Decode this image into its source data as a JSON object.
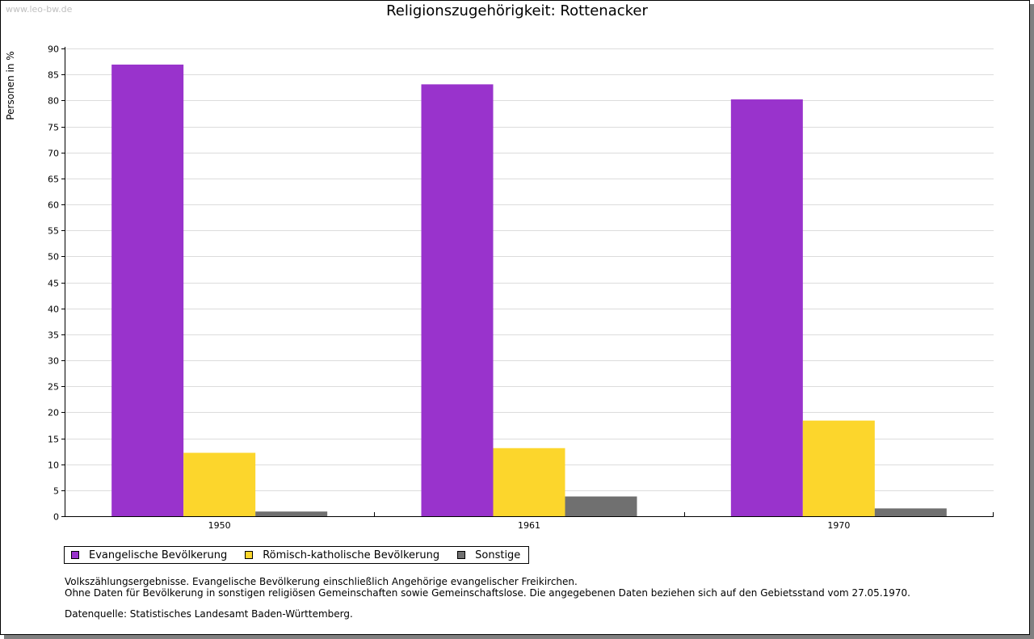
{
  "watermark": "www.leo-bw.de",
  "chart_data": {
    "type": "bar",
    "title": "Religionszugehörigkeit: Rottenacker",
    "ylabel": "Personen in %",
    "xlabel": "",
    "ylim": [
      0,
      90
    ],
    "ytick_step": 5,
    "grid": true,
    "categories": [
      "1950",
      "1961",
      "1970"
    ],
    "series": [
      {
        "name": "Evangelische Bevölkerung",
        "color": "#9933cc",
        "values": [
          86.9,
          83.1,
          80.2
        ]
      },
      {
        "name": "Römisch-katholische Bevölkerung",
        "color": "#fcd62c",
        "values": [
          12.2,
          13.1,
          18.4
        ]
      },
      {
        "name": "Sonstige",
        "color": "#707070",
        "values": [
          0.9,
          3.8,
          1.5
        ]
      }
    ],
    "legend_position": "bottom-left"
  },
  "notes": {
    "line1": "Volkszählungsergebnisse. Evangelische Bevölkerung einschließlich Angehörige evangelischer Freikirchen.",
    "line2": "Ohne Daten für Bevölkerung in sonstigen religiösen Gemeinschaften sowie Gemeinschaftslose. Die angegebenen Daten beziehen sich auf den Gebietsstand vom 27.05.1970.",
    "source": "Datenquelle: Statistisches Landesamt Baden-Württemberg."
  }
}
